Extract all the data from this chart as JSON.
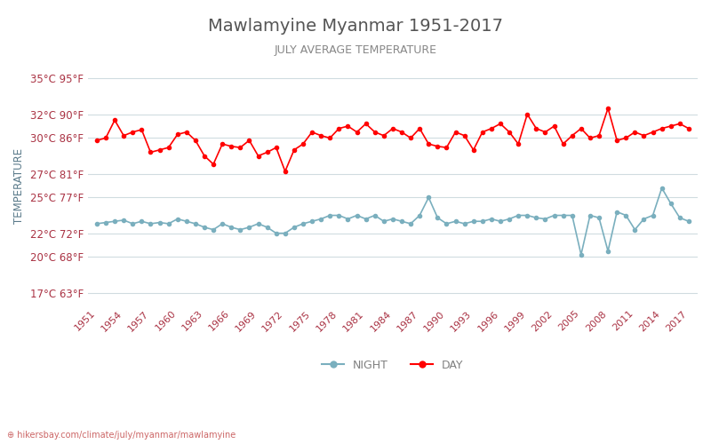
{
  "title": "Mawlamyine Myanmar 1951-2017",
  "subtitle": "JULY AVERAGE TEMPERATURE",
  "ylabel": "TEMPERATURE",
  "url_text": "hikersbay.com/climate/july/myanmar/mawlamyine",
  "legend_night": "NIGHT",
  "legend_day": "DAY",
  "years": [
    1951,
    1952,
    1953,
    1954,
    1955,
    1956,
    1957,
    1958,
    1959,
    1960,
    1961,
    1962,
    1963,
    1964,
    1965,
    1966,
    1967,
    1968,
    1969,
    1970,
    1971,
    1972,
    1973,
    1974,
    1975,
    1976,
    1977,
    1978,
    1979,
    1980,
    1981,
    1982,
    1983,
    1984,
    1985,
    1986,
    1987,
    1988,
    1989,
    1990,
    1991,
    1992,
    1993,
    1994,
    1995,
    1996,
    1997,
    1998,
    1999,
    2000,
    2001,
    2002,
    2003,
    2004,
    2005,
    2006,
    2007,
    2008,
    2009,
    2010,
    2011,
    2012,
    2013,
    2014,
    2015,
    2016,
    2017
  ],
  "day_temps": [
    29.8,
    30.0,
    31.5,
    30.2,
    30.5,
    30.7,
    28.8,
    29.0,
    29.2,
    30.3,
    30.5,
    29.8,
    28.5,
    27.8,
    29.5,
    29.3,
    29.2,
    29.8,
    28.5,
    28.8,
    29.2,
    27.2,
    29.0,
    29.5,
    30.5,
    30.2,
    30.0,
    30.8,
    31.0,
    30.5,
    31.2,
    30.5,
    30.2,
    30.8,
    30.5,
    30.0,
    30.8,
    29.5,
    29.3,
    29.2,
    30.5,
    30.2,
    29.0,
    30.5,
    30.8,
    31.2,
    30.5,
    29.5,
    32.0,
    30.8,
    30.5,
    31.0,
    29.5,
    30.2,
    30.8,
    30.0,
    30.2,
    32.5,
    29.8,
    30.0,
    30.5,
    30.2,
    30.5,
    30.8,
    31.0,
    31.2,
    30.8
  ],
  "night_temps": [
    22.8,
    22.9,
    23.0,
    23.1,
    22.8,
    23.0,
    22.8,
    22.9,
    22.8,
    23.2,
    23.0,
    22.8,
    22.5,
    22.3,
    22.8,
    22.5,
    22.3,
    22.5,
    22.8,
    22.5,
    22.0,
    22.0,
    22.5,
    22.8,
    23.0,
    23.2,
    23.5,
    23.5,
    23.2,
    23.5,
    23.2,
    23.5,
    23.0,
    23.2,
    23.0,
    22.8,
    23.5,
    25.0,
    23.3,
    22.8,
    23.0,
    22.8,
    23.0,
    23.0,
    23.2,
    23.0,
    23.2,
    23.5,
    23.5,
    23.3,
    23.2,
    23.5,
    23.5,
    23.5,
    20.2,
    23.5,
    23.3,
    20.5,
    23.8,
    23.5,
    22.3,
    23.2,
    23.5,
    25.8,
    24.5,
    23.3,
    23.0
  ],
  "yticks_c": [
    17,
    20,
    22,
    25,
    27,
    30,
    32,
    35
  ],
  "yticks_f": [
    63,
    68,
    72,
    77,
    81,
    86,
    90,
    95
  ],
  "ylim": [
    16,
    36
  ],
  "xlim_start": 1950,
  "xlim_end": 2018,
  "xticks": [
    1951,
    1954,
    1957,
    1960,
    1963,
    1966,
    1969,
    1972,
    1975,
    1978,
    1981,
    1984,
    1987,
    1990,
    1993,
    1996,
    1999,
    2002,
    2005,
    2008,
    2011,
    2014,
    2017
  ],
  "day_color": "#ff0000",
  "night_color": "#7aafbe",
  "grid_color": "#d0dce0",
  "background_color": "#ffffff",
  "title_color": "#555555",
  "subtitle_color": "#888888",
  "ylabel_color": "#5a7a8a",
  "tick_color": "#aa3344",
  "url_color": "#cc6666"
}
